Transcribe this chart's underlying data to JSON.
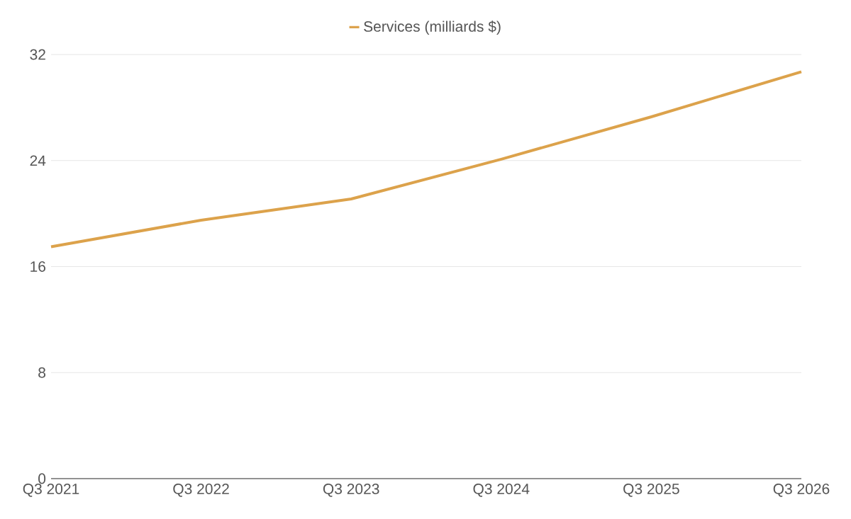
{
  "chart_data": {
    "type": "line",
    "categories": [
      "Q3 2021",
      "Q3 2022",
      "Q3 2023",
      "Q3 2024",
      "Q3 2025",
      "Q3 2026"
    ],
    "series": [
      {
        "name": "Services (milliards $)",
        "color": "#dca24b",
        "values": [
          17.5,
          19.5,
          21.1,
          24.1,
          27.3,
          30.7
        ]
      }
    ],
    "ylim": [
      0,
      32
    ],
    "yticks": [
      0,
      8,
      16,
      24,
      32
    ],
    "grid": "y",
    "legend": "top",
    "marker": "none",
    "line_style": "solid"
  }
}
